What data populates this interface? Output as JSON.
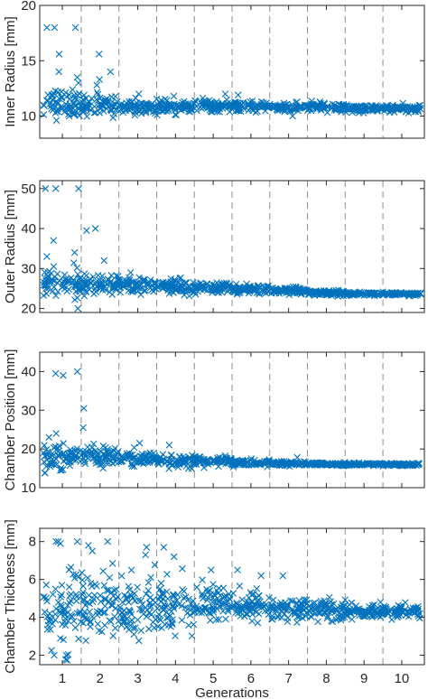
{
  "chart_data": [
    {
      "type": "scatter",
      "ylabel": "Inner Radius [mm]",
      "xlabel": "",
      "ylim": [
        8,
        20
      ],
      "yticks": [
        10,
        15,
        20
      ],
      "xlim": [
        0.4,
        10.6
      ],
      "xticks": [
        1,
        2,
        3,
        4,
        5,
        6,
        7,
        8,
        9,
        10
      ],
      "grid": "vertical dashed separators between generations",
      "marker": "x",
      "color": "#0072BD",
      "generations": [
        {
          "x": 1,
          "center": 11.2,
          "spread": 1.2,
          "outliers": [
            18,
            18,
            18,
            15.6,
            14,
            13.5,
            13
          ]
        },
        {
          "x": 2,
          "center": 10.9,
          "spread": 0.9,
          "outliers": [
            15.6,
            14,
            13.3,
            12.8
          ]
        },
        {
          "x": 3,
          "center": 10.8,
          "spread": 0.6,
          "outliers": [
            12
          ]
        },
        {
          "x": 4,
          "center": 10.8,
          "spread": 0.5,
          "outliers": [
            11.8
          ]
        },
        {
          "x": 5,
          "center": 10.9,
          "spread": 0.45,
          "outliers": [
            12
          ]
        },
        {
          "x": 6,
          "center": 10.9,
          "spread": 0.4,
          "outliers": [
            11.9
          ]
        },
        {
          "x": 7,
          "center": 10.8,
          "spread": 0.4,
          "outliers": [
            10
          ]
        },
        {
          "x": 8,
          "center": 10.8,
          "spread": 0.35,
          "outliers": []
        },
        {
          "x": 9,
          "center": 10.7,
          "spread": 0.3,
          "outliers": []
        },
        {
          "x": 10,
          "center": 10.7,
          "spread": 0.3,
          "outliers": []
        }
      ]
    },
    {
      "type": "scatter",
      "ylabel": "Outer Radius [mm]",
      "xlabel": "",
      "ylim": [
        19,
        52
      ],
      "yticks": [
        20,
        30,
        40,
        50
      ],
      "xlim": [
        0.4,
        10.6
      ],
      "xticks": [
        1,
        2,
        3,
        4,
        5,
        6,
        7,
        8,
        9,
        10
      ],
      "grid": "vertical dashed separators between generations",
      "marker": "x",
      "color": "#0072BD",
      "generations": [
        {
          "x": 1,
          "center": 26.5,
          "spread": 3.5,
          "outliers": [
            50,
            50,
            50,
            37,
            34,
            33,
            20
          ]
        },
        {
          "x": 2,
          "center": 26,
          "spread": 2.5,
          "outliers": [
            40,
            39.5,
            32
          ]
        },
        {
          "x": 3,
          "center": 25.8,
          "spread": 2,
          "outliers": [
            29
          ]
        },
        {
          "x": 4,
          "center": 25.5,
          "spread": 1.7,
          "outliers": []
        },
        {
          "x": 5,
          "center": 25,
          "spread": 1.4,
          "outliers": []
        },
        {
          "x": 6,
          "center": 24.8,
          "spread": 1.1,
          "outliers": []
        },
        {
          "x": 7,
          "center": 24.3,
          "spread": 0.9,
          "outliers": []
        },
        {
          "x": 8,
          "center": 23.9,
          "spread": 0.6,
          "outliers": []
        },
        {
          "x": 9,
          "center": 23.7,
          "spread": 0.4,
          "outliers": []
        },
        {
          "x": 10,
          "center": 23.6,
          "spread": 0.35,
          "outliers": []
        }
      ]
    },
    {
      "type": "scatter",
      "ylabel": "Chamber Position [mm]",
      "xlabel": "",
      "ylim": [
        10,
        45
      ],
      "yticks": [
        10,
        20,
        30,
        40
      ],
      "xlim": [
        0.4,
        10.6
      ],
      "xticks": [
        1,
        2,
        3,
        4,
        5,
        6,
        7,
        8,
        9,
        10
      ],
      "grid": "vertical dashed separators between generations",
      "marker": "x",
      "color": "#0072BD",
      "generations": [
        {
          "x": 1,
          "center": 18,
          "spread": 3,
          "outliers": [
            40,
            39.5,
            39,
            24,
            23
          ]
        },
        {
          "x": 2,
          "center": 18,
          "spread": 2.5,
          "outliers": [
            30.5,
            25.5
          ]
        },
        {
          "x": 3,
          "center": 17.5,
          "spread": 1.8,
          "outliers": [
            21.5
          ]
        },
        {
          "x": 4,
          "center": 17,
          "spread": 1.5,
          "outliers": [
            21
          ]
        },
        {
          "x": 5,
          "center": 16.8,
          "spread": 1.2,
          "outliers": []
        },
        {
          "x": 6,
          "center": 16.4,
          "spread": 0.8,
          "outliers": []
        },
        {
          "x": 7,
          "center": 16.2,
          "spread": 0.6,
          "outliers": [
            17.8
          ]
        },
        {
          "x": 8,
          "center": 16.1,
          "spread": 0.4,
          "outliers": []
        },
        {
          "x": 9,
          "center": 16,
          "spread": 0.3,
          "outliers": []
        },
        {
          "x": 10,
          "center": 16,
          "spread": 0.3,
          "outliers": []
        }
      ]
    },
    {
      "type": "scatter",
      "ylabel": "Chamber Thickness [mm]",
      "xlabel": "Generations",
      "ylim": [
        1.5,
        8.7
      ],
      "yticks": [
        2,
        4,
        6,
        8
      ],
      "xlim": [
        0.4,
        10.6
      ],
      "xticks": [
        1,
        2,
        3,
        4,
        5,
        6,
        7,
        8,
        9,
        10
      ],
      "grid": "vertical dashed separators between generations",
      "marker": "x",
      "color": "#0072BD",
      "generations": [
        {
          "x": 1,
          "center": 4.3,
          "spread": 1.9,
          "outliers": [
            8,
            8,
            8,
            7.9,
            2,
            2
          ]
        },
        {
          "x": 2,
          "center": 4.6,
          "spread": 1.7,
          "outliers": [
            8,
            7.8,
            7.5
          ]
        },
        {
          "x": 3,
          "center": 4.7,
          "spread": 1.5,
          "outliers": [
            7.7,
            7.3
          ]
        },
        {
          "x": 4,
          "center": 4.7,
          "spread": 1.2,
          "outliers": [
            7.7,
            7.2
          ]
        },
        {
          "x": 5,
          "center": 4.7,
          "spread": 0.9,
          "outliers": [
            6.5
          ]
        },
        {
          "x": 6,
          "center": 4.6,
          "spread": 0.7,
          "outliers": [
            6.5,
            6.2
          ]
        },
        {
          "x": 7,
          "center": 4.5,
          "spread": 0.55,
          "outliers": [
            6.2
          ]
        },
        {
          "x": 8,
          "center": 4.4,
          "spread": 0.45,
          "outliers": []
        },
        {
          "x": 9,
          "center": 4.3,
          "spread": 0.35,
          "outliers": []
        },
        {
          "x": 10,
          "center": 4.3,
          "spread": 0.3,
          "outliers": []
        }
      ]
    }
  ]
}
